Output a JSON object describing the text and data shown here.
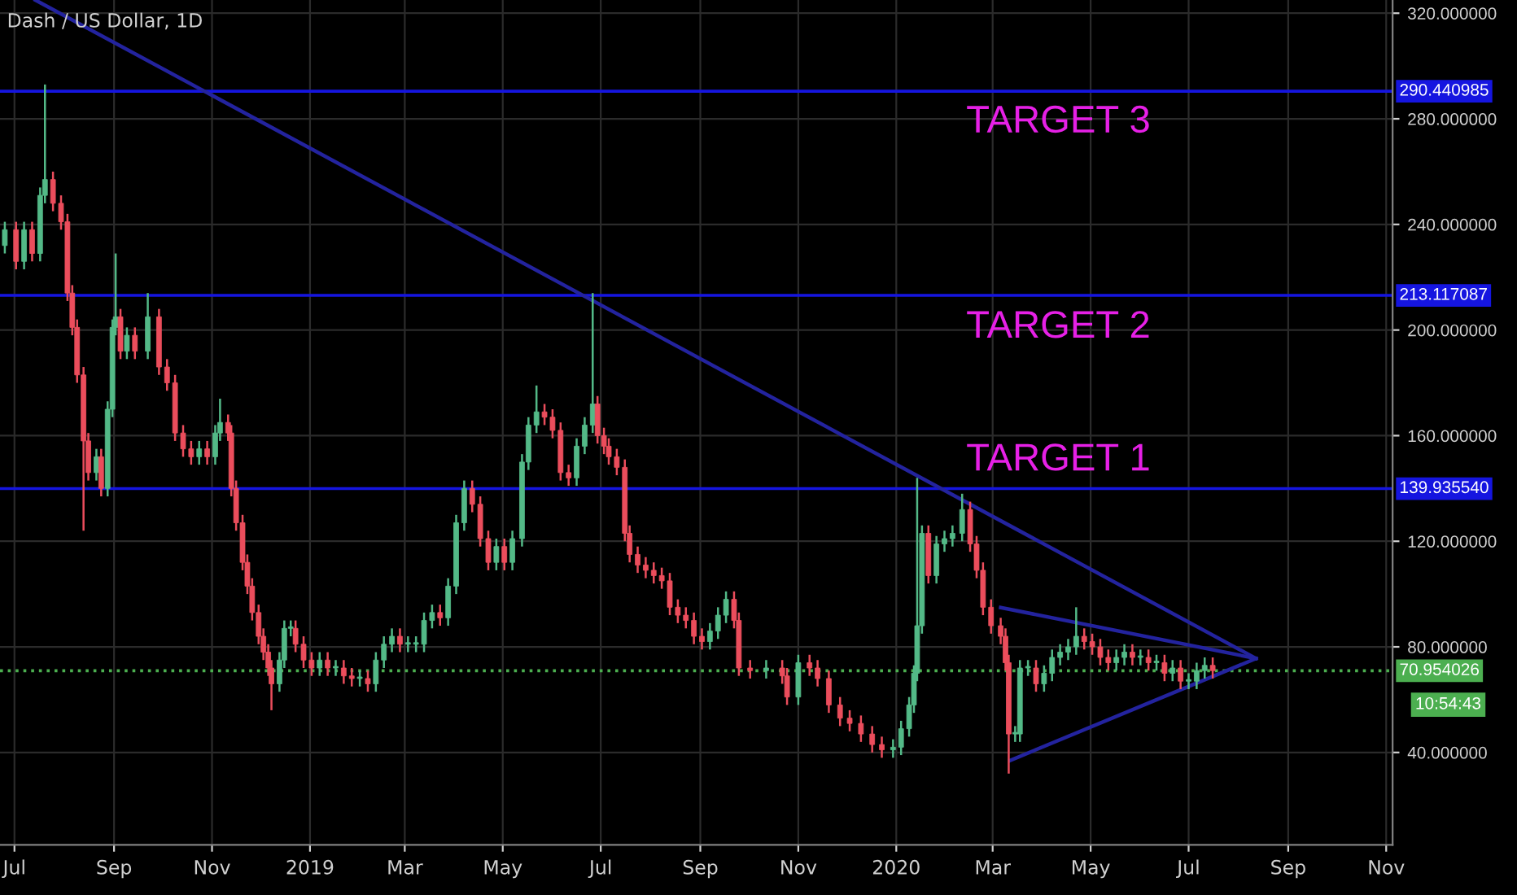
{
  "chart_data": {
    "type": "candlestick",
    "title": "Dash / US Dollar, 1D",
    "x": [
      "2018-06-25",
      "2018-07-02",
      "2018-07-07",
      "2018-07-12",
      "2018-07-17",
      "2018-07-20",
      "2018-07-25",
      "2018-07-30",
      "2018-08-03",
      "2018-08-06",
      "2018-08-09",
      "2018-08-13",
      "2018-08-16",
      "2018-08-21",
      "2018-08-24",
      "2018-08-28",
      "2018-08-31",
      "2018-09-02",
      "2018-09-05",
      "2018-09-09",
      "2018-09-14",
      "2018-09-22",
      "2018-09-29",
      "2018-10-04",
      "2018-10-09",
      "2018-10-14",
      "2018-10-19",
      "2018-10-24",
      "2018-10-29",
      "2018-11-03",
      "2018-11-06",
      "2018-11-11",
      "2018-11-13",
      "2018-11-16",
      "2018-11-20",
      "2018-11-23",
      "2018-11-26",
      "2018-11-30",
      "2018-12-03",
      "2018-12-06",
      "2018-12-08",
      "2018-12-13",
      "2018-12-16",
      "2018-12-20",
      "2018-12-23",
      "2018-12-28",
      "2019-01-02",
      "2019-01-07",
      "2019-01-12",
      "2019-01-17",
      "2019-01-22",
      "2019-01-27",
      "2019-02-01",
      "2019-02-06",
      "2019-02-11",
      "2019-02-16",
      "2019-02-21",
      "2019-02-26",
      "2019-03-03",
      "2019-03-08",
      "2019-03-13",
      "2019-03-18",
      "2019-03-23",
      "2019-03-28",
      "2019-04-02",
      "2019-04-07",
      "2019-04-12",
      "2019-04-17",
      "2019-04-22",
      "2019-04-27",
      "2019-05-02",
      "2019-05-07",
      "2019-05-13",
      "2019-05-17",
      "2019-05-22",
      "2019-05-27",
      "2019-06-01",
      "2019-06-06",
      "2019-06-11",
      "2019-06-16",
      "2019-06-21",
      "2019-06-26",
      "2019-06-29",
      "2019-07-03",
      "2019-07-06",
      "2019-07-11",
      "2019-07-16",
      "2019-07-19",
      "2019-07-24",
      "2019-07-29",
      "2019-08-03",
      "2019-08-08",
      "2019-08-13",
      "2019-08-18",
      "2019-08-23",
      "2019-08-28",
      "2019-09-02",
      "2019-09-07",
      "2019-09-12",
      "2019-09-17",
      "2019-09-22",
      "2019-09-25",
      "2019-10-02",
      "2019-10-12",
      "2019-10-22",
      "2019-10-25",
      "2019-11-01",
      "2019-11-08",
      "2019-11-13",
      "2019-11-20",
      "2019-11-27",
      "2019-12-03",
      "2019-12-10",
      "2019-12-17",
      "2019-12-23",
      "2019-12-30",
      "2020-01-04",
      "2020-01-09",
      "2020-01-12",
      "2020-01-14",
      "2020-01-17",
      "2020-01-21",
      "2020-01-26",
      "2020-01-31",
      "2020-02-05",
      "2020-02-11",
      "2020-02-16",
      "2020-02-20",
      "2020-02-24",
      "2020-02-29",
      "2020-03-06",
      "2020-03-09",
      "2020-03-11",
      "2020-03-15",
      "2020-03-18",
      "2020-03-23",
      "2020-03-28",
      "2020-04-02",
      "2020-04-07",
      "2020-04-12",
      "2020-04-17",
      "2020-04-22",
      "2020-04-27",
      "2020-05-02",
      "2020-05-07",
      "2020-05-12",
      "2020-05-17",
      "2020-05-22",
      "2020-05-27",
      "2020-06-01",
      "2020-06-06",
      "2020-06-11",
      "2020-06-16",
      "2020-06-21",
      "2020-06-26",
      "2020-07-01",
      "2020-07-06",
      "2020-07-11",
      "2020-07-16"
    ],
    "ohlc": [
      [
        232,
        241,
        229,
        238
      ],
      [
        238,
        241,
        223,
        226
      ],
      [
        226,
        241,
        223,
        238
      ],
      [
        238,
        241,
        226,
        229
      ],
      [
        229,
        254,
        226,
        251
      ],
      [
        251,
        293,
        248,
        257
      ],
      [
        257,
        260,
        245,
        248
      ],
      [
        248,
        251,
        238,
        241
      ],
      [
        241,
        244,
        211,
        214
      ],
      [
        214,
        217,
        198,
        201
      ],
      [
        201,
        204,
        180,
        183
      ],
      [
        183,
        186,
        124,
        158
      ],
      [
        158,
        161,
        143,
        146
      ],
      [
        146,
        155,
        143,
        152
      ],
      [
        152,
        155,
        137,
        140
      ],
      [
        140,
        173,
        137,
        170
      ],
      [
        170,
        204,
        167,
        201
      ],
      [
        201,
        229,
        198,
        205
      ],
      [
        205,
        208,
        189,
        192
      ],
      [
        192,
        201,
        189,
        198
      ],
      [
        198,
        201,
        189,
        192
      ],
      [
        192,
        214,
        189,
        205
      ],
      [
        205,
        208,
        183,
        186
      ],
      [
        186,
        189,
        177,
        180
      ],
      [
        180,
        183,
        158,
        161
      ],
      [
        161,
        164,
        152,
        155
      ],
      [
        155,
        158,
        149,
        152
      ],
      [
        152,
        158,
        149,
        155
      ],
      [
        155,
        158,
        149,
        152
      ],
      [
        152,
        164,
        149,
        161
      ],
      [
        161,
        174,
        158,
        165
      ],
      [
        165,
        168,
        158,
        161
      ],
      [
        161,
        164,
        137,
        140
      ],
      [
        140,
        143,
        124,
        127
      ],
      [
        127,
        130,
        109,
        112
      ],
      [
        112,
        115,
        100,
        103
      ],
      [
        103,
        106,
        90,
        93
      ],
      [
        93,
        96,
        81,
        84
      ],
      [
        84,
        87,
        75,
        78
      ],
      [
        78,
        81,
        69,
        72
      ],
      [
        72,
        75,
        56,
        66
      ],
      [
        66,
        78,
        63,
        75
      ],
      [
        75,
        90,
        72,
        87
      ],
      [
        87,
        90,
        84,
        87
      ],
      [
        87,
        90,
        78,
        81
      ],
      [
        81,
        84,
        72,
        75
      ],
      [
        75,
        78,
        69,
        72
      ],
      [
        72,
        78,
        69,
        75
      ],
      [
        75,
        78,
        69,
        72
      ],
      [
        72,
        75,
        69,
        72
      ],
      [
        72,
        75,
        66,
        69
      ],
      [
        69,
        72,
        65,
        68
      ],
      [
        68,
        71,
        65,
        68
      ],
      [
        68,
        71,
        63,
        66
      ],
      [
        66,
        78,
        63,
        75
      ],
      [
        75,
        84,
        72,
        81
      ],
      [
        81,
        87,
        78,
        84
      ],
      [
        84,
        87,
        78,
        81
      ],
      [
        81,
        84,
        78,
        81
      ],
      [
        81,
        84,
        78,
        81
      ],
      [
        81,
        93,
        78,
        90
      ],
      [
        90,
        96,
        87,
        93
      ],
      [
        93,
        96,
        88,
        91
      ],
      [
        91,
        106,
        88,
        103
      ],
      [
        103,
        130,
        100,
        127
      ],
      [
        127,
        143,
        124,
        140
      ],
      [
        140,
        143,
        131,
        134
      ],
      [
        134,
        137,
        118,
        121
      ],
      [
        121,
        124,
        109,
        112
      ],
      [
        112,
        121,
        109,
        118
      ],
      [
        118,
        121,
        109,
        112
      ],
      [
        112,
        124,
        109,
        121
      ],
      [
        121,
        153,
        118,
        150
      ],
      [
        150,
        167,
        147,
        164
      ],
      [
        164,
        179,
        161,
        169
      ],
      [
        169,
        172,
        164,
        167
      ],
      [
        167,
        170,
        159,
        162
      ],
      [
        162,
        165,
        143,
        146
      ],
      [
        146,
        149,
        141,
        144
      ],
      [
        144,
        159,
        141,
        156
      ],
      [
        156,
        167,
        153,
        164
      ],
      [
        164,
        214,
        161,
        172
      ],
      [
        172,
        175,
        157,
        160
      ],
      [
        160,
        163,
        153,
        156
      ],
      [
        156,
        159,
        149,
        152
      ],
      [
        152,
        155,
        145,
        148
      ],
      [
        148,
        151,
        120,
        123
      ],
      [
        123,
        126,
        112,
        115
      ],
      [
        115,
        118,
        108,
        111
      ],
      [
        111,
        114,
        106,
        109
      ],
      [
        109,
        112,
        104,
        107
      ],
      [
        107,
        110,
        102,
        105
      ],
      [
        105,
        108,
        92,
        95
      ],
      [
        95,
        98,
        89,
        92
      ],
      [
        92,
        95,
        87,
        90
      ],
      [
        90,
        93,
        81,
        84
      ],
      [
        84,
        87,
        79,
        82
      ],
      [
        82,
        89,
        79,
        86
      ],
      [
        86,
        95,
        83,
        92
      ],
      [
        92,
        101,
        89,
        98
      ],
      [
        98,
        101,
        87,
        90
      ],
      [
        90,
        93,
        69,
        72
      ],
      [
        72,
        75,
        68,
        71
      ],
      [
        71,
        75,
        68,
        72
      ],
      [
        72,
        75,
        66,
        69
      ],
      [
        69,
        72,
        58,
        61
      ],
      [
        61,
        77,
        58,
        74
      ],
      [
        74,
        77,
        69,
        72
      ],
      [
        72,
        75,
        65,
        68
      ],
      [
        68,
        71,
        55,
        58
      ],
      [
        58,
        61,
        50,
        53
      ],
      [
        53,
        56,
        48,
        51
      ],
      [
        51,
        54,
        44,
        47
      ],
      [
        47,
        50,
        40,
        43
      ],
      [
        43,
        46,
        38,
        41
      ],
      [
        41,
        45,
        38,
        42
      ],
      [
        42,
        52,
        39,
        49
      ],
      [
        49,
        61,
        46,
        58
      ],
      [
        58,
        73,
        55,
        70
      ],
      [
        70,
        144,
        67,
        88
      ],
      [
        88,
        126,
        85,
        123
      ],
      [
        123,
        126,
        104,
        107
      ],
      [
        107,
        122,
        104,
        119
      ],
      [
        119,
        124,
        116,
        121
      ],
      [
        121,
        126,
        118,
        123
      ],
      [
        123,
        138,
        120,
        132
      ],
      [
        132,
        135,
        116,
        119
      ],
      [
        119,
        122,
        106,
        109
      ],
      [
        109,
        112,
        92,
        95
      ],
      [
        95,
        98,
        85,
        88
      ],
      [
        88,
        91,
        81,
        84
      ],
      [
        84,
        87,
        71,
        74
      ],
      [
        74,
        77,
        32,
        47
      ],
      [
        47,
        50,
        44,
        47
      ],
      [
        47,
        75,
        44,
        72
      ],
      [
        72,
        75,
        69,
        72
      ],
      [
        72,
        75,
        63,
        66
      ],
      [
        66,
        73,
        63,
        70
      ],
      [
        70,
        79,
        67,
        76
      ],
      [
        76,
        81,
        73,
        78
      ],
      [
        78,
        83,
        75,
        80
      ],
      [
        80,
        95,
        77,
        84
      ],
      [
        84,
        87,
        79,
        82
      ],
      [
        82,
        85,
        77,
        80
      ],
      [
        80,
        83,
        73,
        76
      ],
      [
        76,
        79,
        71,
        74
      ],
      [
        74,
        79,
        71,
        76
      ],
      [
        76,
        81,
        73,
        78
      ],
      [
        78,
        81,
        73,
        76
      ],
      [
        76,
        79,
        73,
        76
      ],
      [
        76,
        79,
        71,
        74
      ],
      [
        74,
        77,
        71,
        74
      ],
      [
        74,
        77,
        67,
        70
      ],
      [
        70,
        75,
        67,
        72
      ],
      [
        72,
        75,
        64,
        67
      ],
      [
        67,
        70,
        64,
        67
      ],
      [
        67,
        74,
        64,
        71
      ],
      [
        71,
        76,
        68,
        73
      ],
      [
        73,
        76,
        68,
        71
      ]
    ],
    "colors": [
      "#53b987",
      "#eb4d5c",
      "#53b987",
      "#eb4d5c",
      "#53b987",
      "#53b987",
      "#eb4d5c",
      "#eb4d5c",
      "#eb4d5c",
      "#eb4d5c",
      "#eb4d5c",
      "#eb4d5c",
      "#eb4d5c",
      "#53b987",
      "#eb4d5c",
      "#53b987",
      "#53b987",
      "#53b987",
      "#eb4d5c",
      "#53b987",
      "#eb4d5c",
      "#53b987",
      "#eb4d5c",
      "#eb4d5c",
      "#eb4d5c",
      "#eb4d5c",
      "#eb4d5c",
      "#53b987",
      "#eb4d5c",
      "#53b987",
      "#53b987",
      "#eb4d5c",
      "#eb4d5c",
      "#eb4d5c",
      "#eb4d5c",
      "#eb4d5c",
      "#eb4d5c",
      "#eb4d5c",
      "#eb4d5c",
      "#eb4d5c",
      "#eb4d5c",
      "#53b987",
      "#53b987",
      "#53b987",
      "#eb4d5c",
      "#eb4d5c",
      "#eb4d5c",
      "#53b987",
      "#eb4d5c",
      "#53b987",
      "#eb4d5c",
      "#eb4d5c",
      "#53b987",
      "#eb4d5c",
      "#53b987",
      "#53b987",
      "#53b987",
      "#eb4d5c",
      "#53b987",
      "#53b987",
      "#53b987",
      "#53b987",
      "#eb4d5c",
      "#53b987",
      "#53b987",
      "#53b987",
      "#eb4d5c",
      "#eb4d5c",
      "#eb4d5c",
      "#53b987",
      "#eb4d5c",
      "#53b987",
      "#53b987",
      "#53b987",
      "#53b987",
      "#eb4d5c",
      "#eb4d5c",
      "#eb4d5c",
      "#eb4d5c",
      "#53b987",
      "#53b987",
      "#53b987",
      "#eb4d5c",
      "#eb4d5c",
      "#eb4d5c",
      "#eb4d5c",
      "#eb4d5c",
      "#eb4d5c",
      "#eb4d5c",
      "#eb4d5c",
      "#eb4d5c",
      "#eb4d5c",
      "#eb4d5c",
      "#eb4d5c",
      "#eb4d5c",
      "#eb4d5c",
      "#eb4d5c",
      "#53b987",
      "#53b987",
      "#53b987",
      "#eb4d5c",
      "#eb4d5c",
      "#eb4d5c",
      "#53b987",
      "#eb4d5c",
      "#eb4d5c",
      "#53b987",
      "#eb4d5c",
      "#eb4d5c",
      "#eb4d5c",
      "#eb4d5c",
      "#eb4d5c",
      "#eb4d5c",
      "#eb4d5c",
      "#eb4d5c",
      "#53b987",
      "#53b987",
      "#53b987",
      "#53b987",
      "#53b987",
      "#53b987",
      "#eb4d5c",
      "#53b987",
      "#53b987",
      "#53b987",
      "#53b987",
      "#eb4d5c",
      "#eb4d5c",
      "#eb4d5c",
      "#eb4d5c",
      "#eb4d5c",
      "#eb4d5c",
      "#eb4d5c",
      "#53b987",
      "#53b987",
      "#53b987",
      "#eb4d5c",
      "#53b987",
      "#53b987",
      "#53b987",
      "#53b987",
      "#53b987",
      "#eb4d5c",
      "#eb4d5c",
      "#eb4d5c",
      "#eb4d5c",
      "#53b987",
      "#53b987",
      "#eb4d5c",
      "#53b987",
      "#eb4d5c",
      "#53b987",
      "#eb4d5c",
      "#53b987",
      "#eb4d5c",
      "#53b987",
      "#53b987",
      "#53b987",
      "#eb4d5c"
    ],
    "series": [
      {
        "type": "line",
        "color": "#23239e",
        "x": [
          "2018-07-14",
          "2020-08-12"
        ],
        "values": [
          325,
          75.6
        ]
      },
      {
        "type": "line",
        "color": "#23239e",
        "x": [
          "2020-03-06",
          "2020-08-12"
        ],
        "values": [
          94.9,
          75.6
        ]
      },
      {
        "type": "line",
        "color": "#23239e",
        "x": [
          "2020-03-12",
          "2020-08-12"
        ],
        "values": [
          37,
          75.6
        ]
      }
    ],
    "ref_lines": [
      {
        "axis": "y",
        "value": 290.440985,
        "label": "290.440985",
        "color": "#1515e0",
        "line_style": "solid"
      },
      {
        "axis": "y",
        "value": 213.117087,
        "label": "213.117087",
        "color": "#1515e0",
        "line_style": "solid"
      },
      {
        "axis": "y",
        "value": 139.93554,
        "label": "139.935540",
        "color": "#1515e0",
        "line_style": "solid"
      },
      {
        "axis": "y",
        "value": 70.954026,
        "label": "70.954026",
        "color": "#4caf50",
        "line_style": "dotted"
      }
    ],
    "annotations": [
      "TARGET 3",
      "TARGET 2",
      "TARGET 1",
      "10:54:43"
    ],
    "xlim": [
      "2018-06-22",
      "2020-11-05"
    ],
    "xticks": [
      {
        "value": "2018-07-01",
        "label": "Jul"
      },
      {
        "value": "2018-09-01",
        "label": "Sep"
      },
      {
        "value": "2018-11-01",
        "label": "Nov"
      },
      {
        "value": "2019-01-01",
        "label": "2019"
      },
      {
        "value": "2019-03-01",
        "label": "Mar"
      },
      {
        "value": "2019-05-01",
        "label": "May"
      },
      {
        "value": "2019-07-01",
        "label": "Jul"
      },
      {
        "value": "2019-09-01",
        "label": "Sep"
      },
      {
        "value": "2019-11-01",
        "label": "Nov"
      },
      {
        "value": "2020-01-01",
        "label": "2020"
      },
      {
        "value": "2020-03-01",
        "label": "Mar"
      },
      {
        "value": "2020-05-01",
        "label": "May"
      },
      {
        "value": "2020-07-01",
        "label": "Jul"
      },
      {
        "value": "2020-09-01",
        "label": "Sep"
      },
      {
        "value": "2020-11-01",
        "label": "Nov"
      }
    ],
    "ylim": [
      5,
      325
    ],
    "yticks": [
      {
        "value": 40,
        "label": "40.000000"
      },
      {
        "value": 80,
        "label": "80.000000"
      },
      {
        "value": 120,
        "label": "120.000000"
      },
      {
        "value": 160,
        "label": "160.000000"
      },
      {
        "value": 200,
        "label": "200.000000"
      },
      {
        "value": 240,
        "label": "240.000000"
      },
      {
        "value": 280,
        "label": "280.000000"
      },
      {
        "value": 320,
        "label": "320.000000"
      }
    ],
    "grid": true
  }
}
